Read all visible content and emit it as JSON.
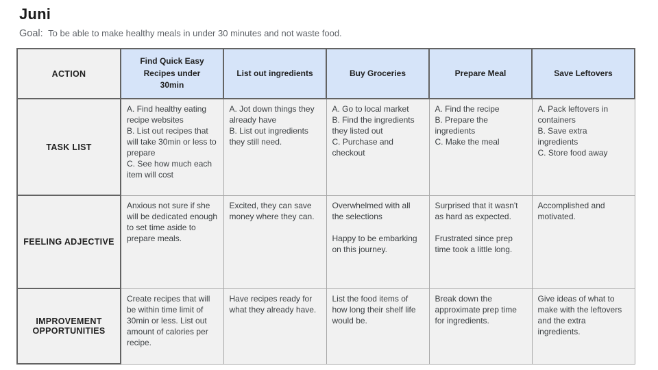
{
  "page": {
    "title": "Juni",
    "goal_label": "Goal:",
    "goal_text": "To be able to make healthy meals in under 30 minutes and not waste food."
  },
  "table": {
    "corner_label": "ACTION",
    "columns": [
      "Find Quick Easy Recipes under 30min",
      "List out ingredients",
      "Buy Groceries",
      "Prepare Meal",
      "Save Leftovers"
    ],
    "rows": [
      {
        "label": "TASK LIST",
        "cells": [
          "A. Find healthy eating recipe websites\nB. List out recipes that will take 30min or less to prepare\nC. See how much each item will cost",
          "A. Jot down things they already have\nB. List out ingredients they still need.",
          "A. Go to local market\nB. Find the ingredients they listed out\nC. Purchase and checkout",
          "A. Find the recipe\nB. Prepare the ingredients\nC. Make the meal",
          "A. Pack leftovers in containers\nB. Save extra ingredients\nC. Store food away"
        ]
      },
      {
        "label": "FEELING ADJECTIVE",
        "cells": [
          "Anxious not sure if she will be dedicated enough to set time aside to prepare meals.",
          "Excited, they can save money where they can.",
          "Overwhelmed with all the selections\n\nHappy to be embarking on this journey.",
          "Surprised that it wasn't as hard as expected.\n\nFrustrated since prep time took a little long.",
          "Accomplished and motivated."
        ]
      },
      {
        "label": "IMPROVEMENT OPPORTUNITIES",
        "cells": [
          "Create recipes that will be within time limit of 30min or less. List out amount of calories per recipe.",
          "Have recipes ready for what they already have.",
          "List the food items of how long their shelf life would be.",
          "Break down the approximate prep time for ingredients.",
          "Give ideas of what to make with the leftovers and the extra ingredients."
        ]
      }
    ]
  },
  "colors": {
    "header_blue": "#d6e4f9",
    "cell_gray": "#f1f1f1",
    "border_dark": "#636363",
    "border_light": "#a8a8a8",
    "title_text": "#1a1a1a",
    "body_text": "#3c4043",
    "goal_text": "#5f6368"
  }
}
